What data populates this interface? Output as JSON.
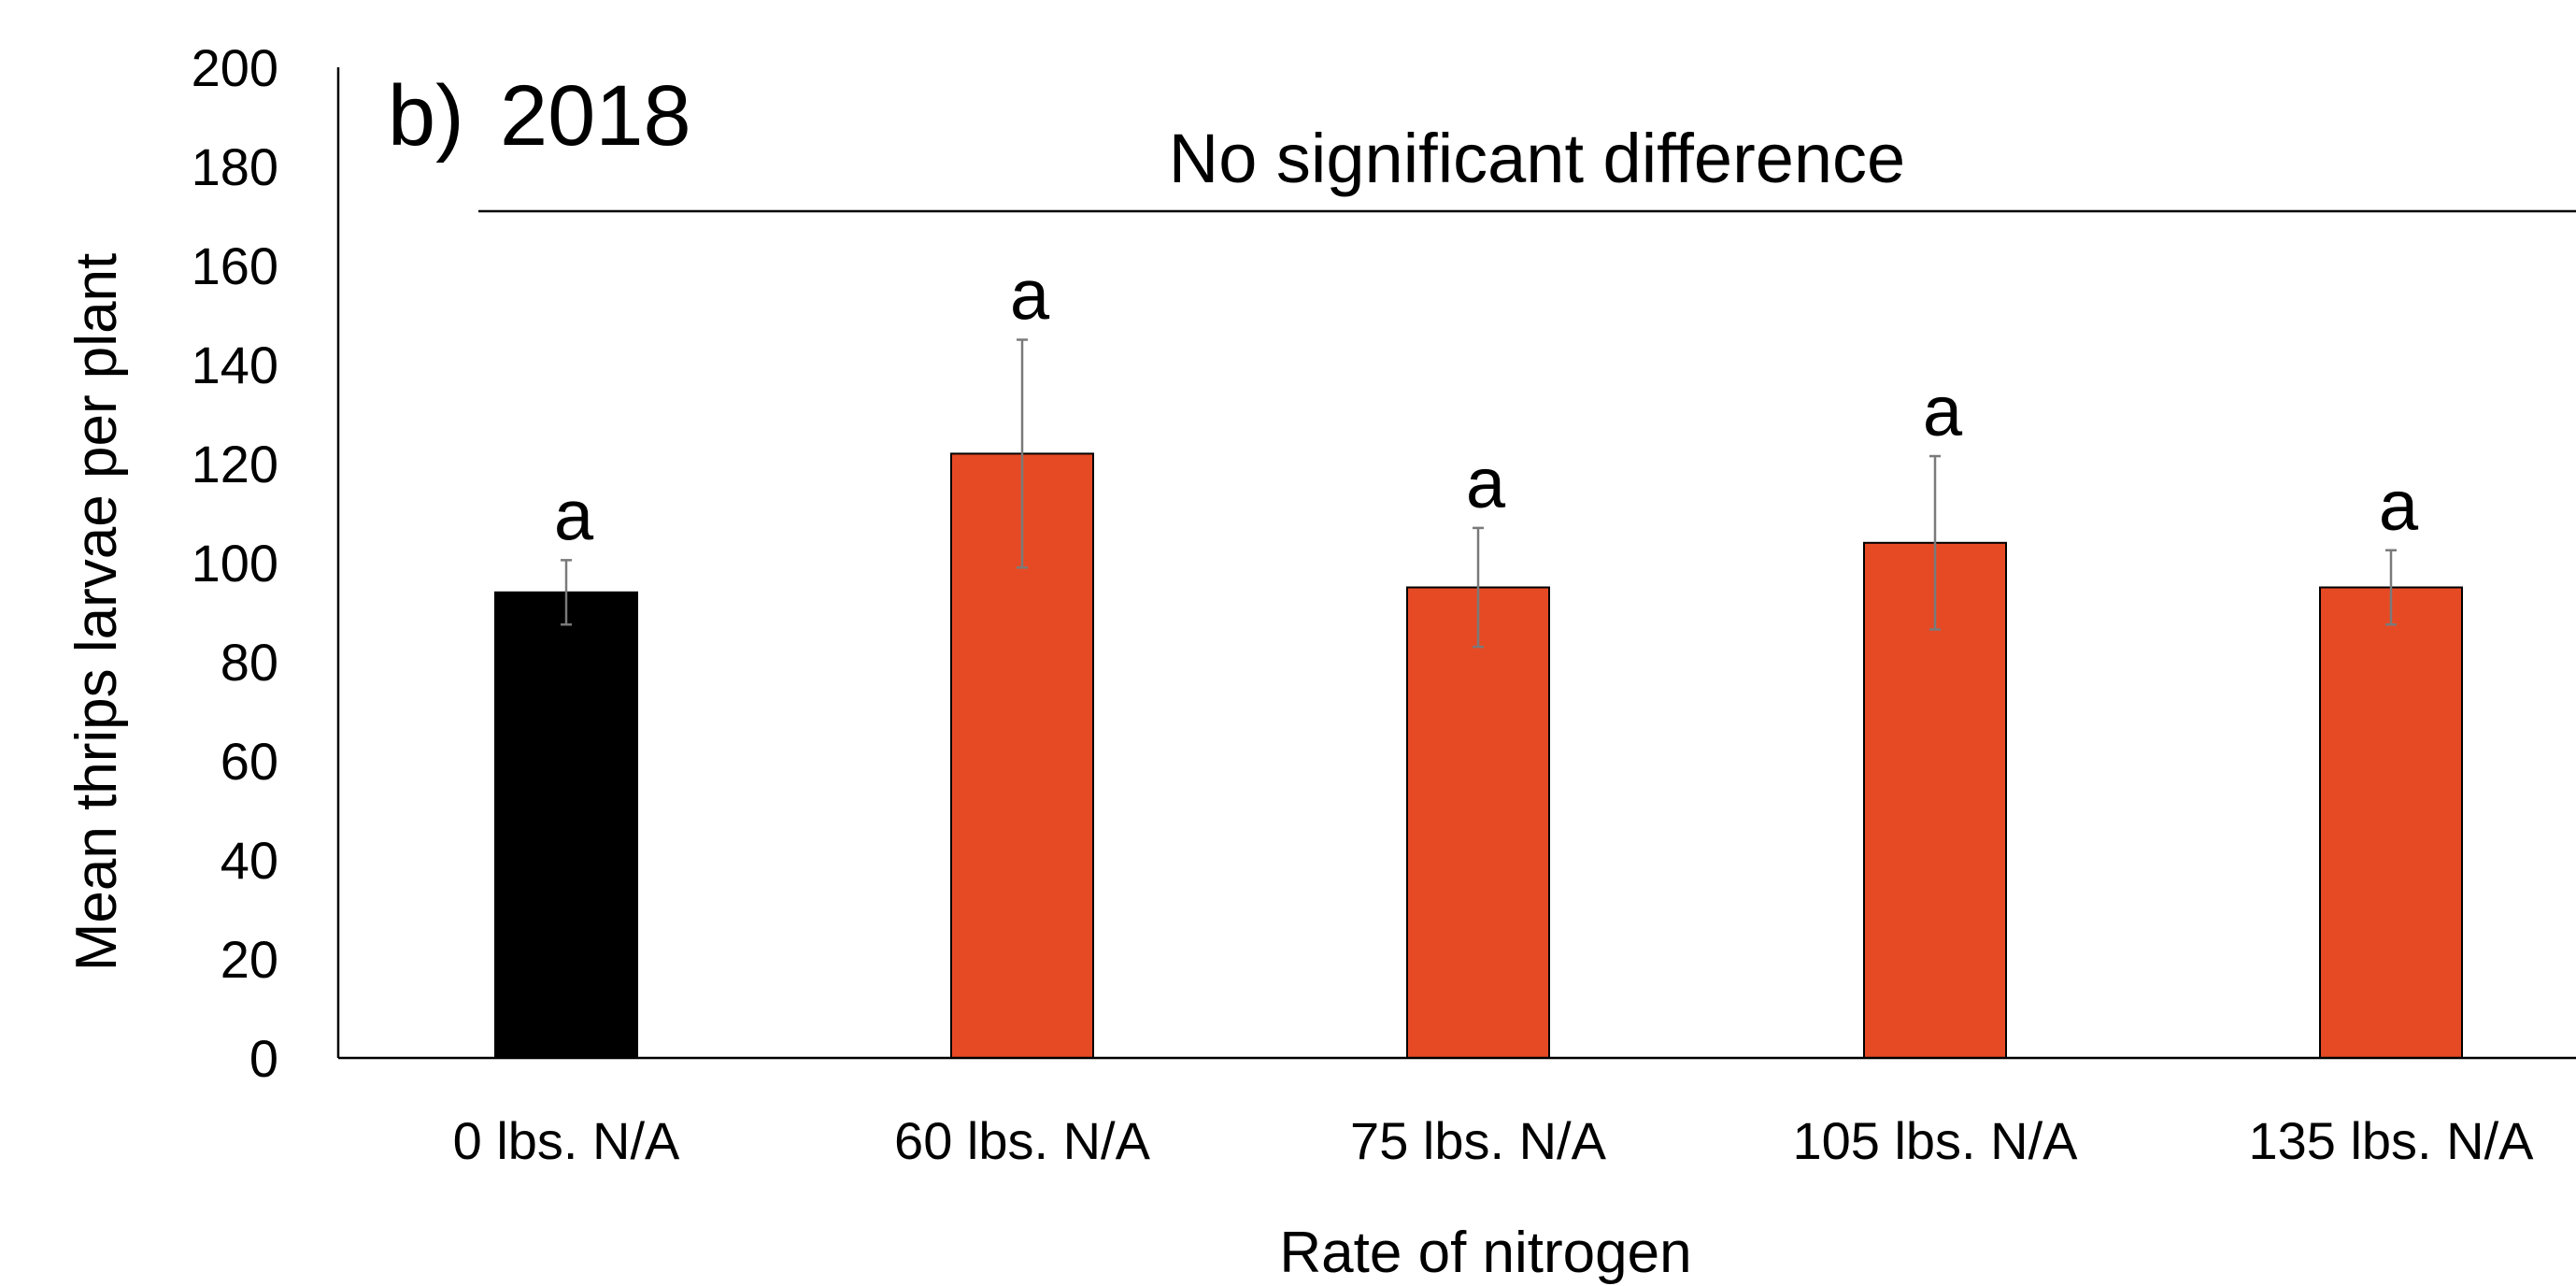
{
  "chart_data": {
    "type": "bar",
    "panel_label": "b)",
    "title": "2018",
    "annotation": "No significant difference",
    "annotation_color": "#E64A25",
    "xlabel": "Rate of nitrogen",
    "ylabel": "Mean thrips larvae per plant",
    "ylim": [
      0,
      200
    ],
    "yticks": [
      0,
      20,
      40,
      60,
      80,
      100,
      120,
      140,
      160,
      180,
      200
    ],
    "categories": [
      "0 lbs. N/A",
      "60 lbs. N/A",
      "75 lbs. N/A",
      "105 lbs. N/A",
      "135 lbs. N/A"
    ],
    "values": [
      94,
      122,
      95,
      104,
      95
    ],
    "errors": [
      6.5,
      23,
      12,
      17.5,
      7.5
    ],
    "significance_letters": [
      "a",
      "a",
      "a",
      "a",
      "a"
    ],
    "bar_colors": [
      "#000000",
      "#E64A25",
      "#E64A25",
      "#E64A25",
      "#E64A25"
    ],
    "grid": false,
    "legend": "none"
  }
}
